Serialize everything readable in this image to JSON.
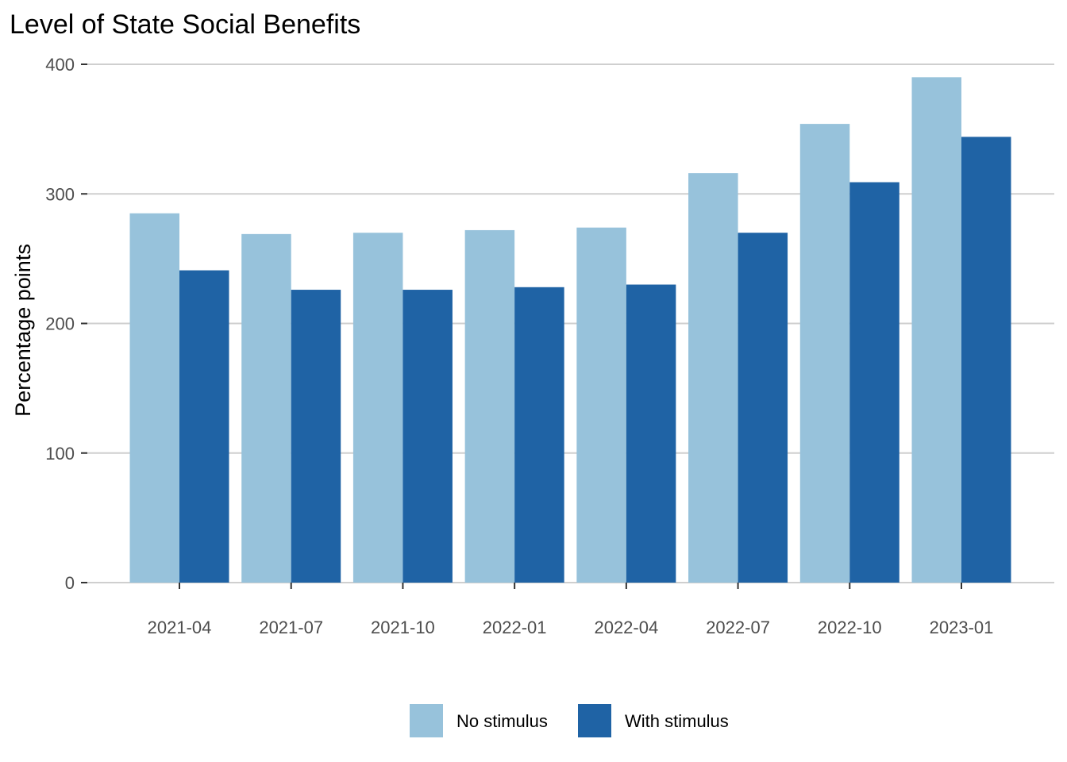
{
  "chart_data": {
    "type": "bar",
    "title": "Level of State Social Benefits",
    "xlabel": "",
    "ylabel": "Percentage points",
    "ylim": [
      0,
      400
    ],
    "yticks": [
      0,
      100,
      200,
      300,
      400
    ],
    "categories": [
      "2021-04",
      "2021-07",
      "2021-10",
      "2022-01",
      "2022-04",
      "2022-07",
      "2022-10",
      "2023-01"
    ],
    "series": [
      {
        "name": "No stimulus",
        "color": "#97c2db",
        "values": [
          285,
          269,
          270,
          272,
          274,
          316,
          354,
          390
        ]
      },
      {
        "name": "With stimulus",
        "color": "#1f63a5",
        "values": [
          241,
          226,
          226,
          228,
          230,
          270,
          309,
          344
        ]
      }
    ],
    "grid": true,
    "legend_position": "bottom"
  }
}
